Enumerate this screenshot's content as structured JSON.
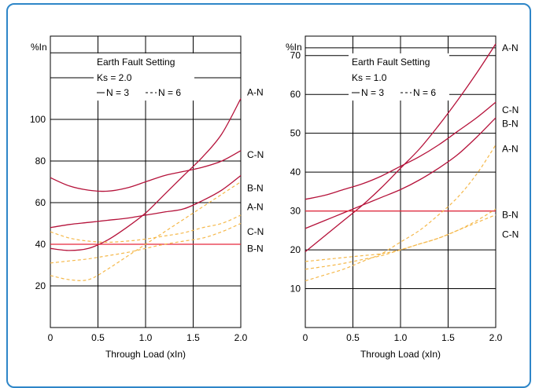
{
  "frame_color": "#2e86c8",
  "chart_data": [
    {
      "type": "line",
      "title": "Earth Fault Setting",
      "subtitle": "Ks = 2.0",
      "legend": {
        "solid": "N = 3",
        "dashed": "N = 6"
      },
      "ylabel": "%In",
      "xlabel": "Through Load (xIn)",
      "xlim": [
        0,
        2.0
      ],
      "ylim": [
        0,
        140
      ],
      "xticks": [
        "0",
        "0.5",
        "1.0",
        "1.5",
        "2.0"
      ],
      "yticks": [
        {
          "v": 20,
          "t": "20"
        },
        {
          "v": 40,
          "t": "40"
        },
        {
          "v": 60,
          "t": "60"
        },
        {
          "v": 80,
          "t": "80"
        },
        {
          "v": 100,
          "t": "100"
        }
      ],
      "series": [
        {
          "name": "A-N",
          "style": "solid",
          "color": "#b5123a",
          "x": [
            0,
            0.2,
            0.4,
            0.6,
            0.8,
            1.0,
            1.2,
            1.4,
            1.6,
            1.8,
            2.0
          ],
          "y": [
            38,
            37,
            38,
            42,
            48,
            55,
            64,
            73,
            82,
            93,
            110
          ]
        },
        {
          "name": "C-N",
          "style": "solid",
          "color": "#b5123a",
          "x": [
            0,
            0.2,
            0.4,
            0.6,
            0.8,
            1.0,
            1.2,
            1.4,
            1.6,
            1.8,
            2.0
          ],
          "y": [
            72,
            68,
            66,
            65.5,
            67,
            70,
            73,
            75,
            77,
            80,
            85
          ]
        },
        {
          "name": "B-N",
          "style": "solid",
          "color": "#b5123a",
          "x": [
            0,
            0.2,
            0.4,
            0.6,
            0.8,
            1.0,
            1.2,
            1.4,
            1.6,
            1.8,
            2.0
          ],
          "y": [
            48,
            49.5,
            50.5,
            51.5,
            52.5,
            54,
            55.5,
            57,
            61,
            66,
            73
          ]
        },
        {
          "name": "B-N",
          "style": "solid",
          "color": "#e8283c",
          "x": [
            0,
            2.0
          ],
          "y": [
            40,
            40
          ]
        },
        {
          "name": "A-N",
          "style": "dashed",
          "color": "#f5b84a",
          "x": [
            0,
            0.2,
            0.4,
            0.6,
            0.8,
            1.0,
            1.2,
            1.4,
            1.6,
            1.8,
            2.0
          ],
          "y": [
            25,
            23,
            23,
            28,
            34,
            40,
            46,
            52,
            58,
            64,
            70
          ]
        },
        {
          "name": "C-N",
          "style": "dashed",
          "color": "#f5b84a",
          "x": [
            0,
            0.2,
            0.4,
            0.6,
            0.8,
            1.0,
            1.2,
            1.4,
            1.6,
            1.8,
            2.0
          ],
          "y": [
            46,
            43,
            41.5,
            41,
            41.5,
            42.5,
            44,
            45.5,
            48,
            50,
            54
          ]
        },
        {
          "name": "B-N",
          "style": "dashed",
          "color": "#f5b84a",
          "x": [
            0,
            0.2,
            0.4,
            0.6,
            0.8,
            1.0,
            1.2,
            1.4,
            1.6,
            1.8,
            2.0
          ],
          "y": [
            31,
            32,
            33,
            34.5,
            36,
            38,
            40,
            41.5,
            43,
            46,
            50
          ]
        }
      ],
      "end_labels": [
        {
          "text": "A-N",
          "y": 113
        },
        {
          "text": "C-N",
          "y": 83
        },
        {
          "text": "B-N",
          "y": 67
        },
        {
          "text": "A-N",
          "y": 58
        },
        {
          "text": "C-N",
          "y": 46
        },
        {
          "text": "B-N",
          "y": 38
        }
      ]
    },
    {
      "type": "line",
      "title": "Earth Fault Setting",
      "subtitle": "Ks = 1.0",
      "legend": {
        "solid": "N = 3",
        "dashed": "N = 6"
      },
      "ylabel": "%In",
      "xlabel": "Through Load (xIn)",
      "xlim": [
        0,
        2.0
      ],
      "ylim": [
        0,
        75
      ],
      "xticks": [
        "0",
        "0.5",
        "1.0",
        "1.5",
        "2.0"
      ],
      "yticks": [
        {
          "v": 10,
          "t": "10"
        },
        {
          "v": 20,
          "t": "20"
        },
        {
          "v": 30,
          "t": "30"
        },
        {
          "v": 40,
          "t": "40"
        },
        {
          "v": 50,
          "t": "50"
        },
        {
          "v": 60,
          "t": "60"
        },
        {
          "v": 70,
          "t": "70"
        }
      ],
      "series": [
        {
          "name": "A-N",
          "style": "solid",
          "color": "#b5123a",
          "x": [
            0,
            0.2,
            0.4,
            0.6,
            0.8,
            1.0,
            1.2,
            1.4,
            1.6,
            1.8,
            2.0
          ],
          "y": [
            19.5,
            23.5,
            27.5,
            31.5,
            36,
            41,
            46,
            52,
            58.5,
            65.5,
            73
          ]
        },
        {
          "name": "C-N",
          "style": "solid",
          "color": "#b5123a",
          "x": [
            0,
            0.2,
            0.4,
            0.6,
            0.8,
            1.0,
            1.2,
            1.4,
            1.6,
            1.8,
            2.0
          ],
          "y": [
            33,
            34,
            35.5,
            37,
            39,
            41.5,
            44,
            47,
            50.5,
            54,
            58
          ]
        },
        {
          "name": "B-N",
          "style": "solid",
          "color": "#b5123a",
          "x": [
            0,
            0.2,
            0.4,
            0.6,
            0.8,
            1.0,
            1.2,
            1.4,
            1.6,
            1.8,
            2.0
          ],
          "y": [
            25.5,
            27.5,
            29.5,
            31.5,
            33.5,
            35.5,
            38,
            41,
            44.5,
            49,
            54
          ]
        },
        {
          "name": "B-N",
          "style": "solid",
          "color": "#e8283c",
          "x": [
            0,
            2.0
          ],
          "y": [
            30,
            30
          ]
        },
        {
          "name": "A-N",
          "style": "dashed",
          "color": "#f5b84a",
          "x": [
            0,
            0.2,
            0.4,
            0.6,
            0.8,
            1.0,
            1.2,
            1.4,
            1.6,
            1.8,
            2.0
          ],
          "y": [
            12,
            13.5,
            15,
            17,
            19,
            22,
            25,
            29,
            33.5,
            39.5,
            47
          ]
        },
        {
          "name": "B-N",
          "style": "dashed",
          "color": "#f5b84a",
          "x": [
            0,
            0.2,
            0.4,
            0.6,
            0.8,
            1.0,
            1.2,
            1.4,
            1.6,
            1.8,
            2.0
          ],
          "y": [
            17,
            17.5,
            18,
            18.5,
            19,
            20,
            21.5,
            23,
            25,
            27.5,
            30.5
          ]
        },
        {
          "name": "C-N",
          "style": "dashed",
          "color": "#f5b84a",
          "x": [
            0,
            0.2,
            0.4,
            0.6,
            0.8,
            1.0,
            1.2,
            1.4,
            1.6,
            1.8,
            2.0
          ],
          "y": [
            15,
            15.7,
            16.5,
            17.5,
            18.5,
            20,
            21.5,
            23,
            25,
            27,
            29
          ]
        }
      ],
      "end_labels": [
        {
          "text": "A-N",
          "y": 72
        },
        {
          "text": "C-N",
          "y": 56
        },
        {
          "text": "B-N",
          "y": 52.5
        },
        {
          "text": "A-N",
          "y": 46
        },
        {
          "text": "B-N",
          "y": 29
        },
        {
          "text": "C-N",
          "y": 24
        }
      ]
    }
  ]
}
